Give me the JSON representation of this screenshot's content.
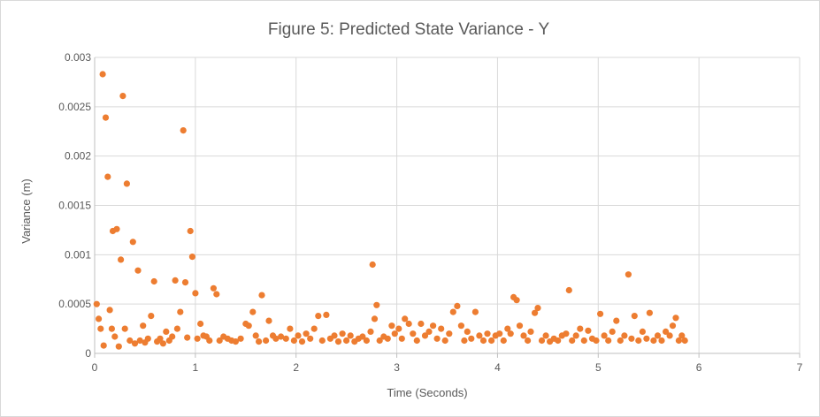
{
  "chart_data": {
    "type": "scatter",
    "title": "Figure 5: Predicted State Variance - Y",
    "xlabel": "Time (Seconds)",
    "ylabel": "Variance (m)",
    "xlim": [
      0,
      7
    ],
    "ylim": [
      0,
      0.003
    ],
    "x_ticks": [
      "0",
      "1",
      "2",
      "3",
      "4",
      "5",
      "6",
      "7"
    ],
    "y_ticks": [
      "0",
      "0.0005",
      "0.001",
      "0.0015",
      "0.002",
      "0.0025",
      "0.003"
    ],
    "grid": true,
    "legend": "none",
    "marker_color": "#ED7D31",
    "series": [
      {
        "points": [
          [
            0.02,
            0.0005
          ],
          [
            0.04,
            0.00035
          ],
          [
            0.06,
            0.00025
          ],
          [
            0.08,
            0.00283
          ],
          [
            0.09,
            8e-05
          ],
          [
            0.11,
            0.00239
          ],
          [
            0.13,
            0.00179
          ],
          [
            0.15,
            0.00044
          ],
          [
            0.17,
            0.00025
          ],
          [
            0.18,
            0.00124
          ],
          [
            0.2,
            0.00017
          ],
          [
            0.22,
            0.00126
          ],
          [
            0.24,
            7e-05
          ],
          [
            0.26,
            0.00095
          ],
          [
            0.28,
            0.00261
          ],
          [
            0.3,
            0.00025
          ],
          [
            0.32,
            0.00172
          ],
          [
            0.35,
            0.00013
          ],
          [
            0.38,
            0.00113
          ],
          [
            0.4,
            0.0001
          ],
          [
            0.43,
            0.00084
          ],
          [
            0.45,
            0.00013
          ],
          [
            0.48,
            0.00028
          ],
          [
            0.5,
            0.00011
          ],
          [
            0.53,
            0.00015
          ],
          [
            0.56,
            0.00038
          ],
          [
            0.59,
            0.00073
          ],
          [
            0.62,
            0.00012
          ],
          [
            0.65,
            0.00015
          ],
          [
            0.68,
            0.0001
          ],
          [
            0.71,
            0.00022
          ],
          [
            0.74,
            0.00013
          ],
          [
            0.77,
            0.00017
          ],
          [
            0.8,
            0.00074
          ],
          [
            0.82,
            0.00025
          ],
          [
            0.85,
            0.00042
          ],
          [
            0.88,
            0.00226
          ],
          [
            0.9,
            0.00072
          ],
          [
            0.92,
            0.00016
          ],
          [
            0.95,
            0.00124
          ],
          [
            0.97,
            0.00098
          ],
          [
            1.0,
            0.00061
          ],
          [
            1.02,
            0.00015
          ],
          [
            1.05,
            0.0003
          ],
          [
            1.08,
            0.00018
          ],
          [
            1.11,
            0.00017
          ],
          [
            1.14,
            0.00013
          ],
          [
            1.18,
            0.00066
          ],
          [
            1.21,
            0.0006
          ],
          [
            1.24,
            0.00013
          ],
          [
            1.28,
            0.00017
          ],
          [
            1.32,
            0.00015
          ],
          [
            1.36,
            0.00013
          ],
          [
            1.4,
            0.00012
          ],
          [
            1.45,
            0.00015
          ],
          [
            1.5,
            0.0003
          ],
          [
            1.53,
            0.00028
          ],
          [
            1.57,
            0.00042
          ],
          [
            1.6,
            0.00018
          ],
          [
            1.63,
            0.00012
          ],
          [
            1.66,
            0.00059
          ],
          [
            1.7,
            0.00013
          ],
          [
            1.73,
            0.00033
          ],
          [
            1.77,
            0.00018
          ],
          [
            1.8,
            0.00015
          ],
          [
            1.85,
            0.00017
          ],
          [
            1.9,
            0.00015
          ],
          [
            1.94,
            0.00025
          ],
          [
            1.98,
            0.00013
          ],
          [
            2.02,
            0.00018
          ],
          [
            2.06,
            0.00012
          ],
          [
            2.1,
            0.0002
          ],
          [
            2.14,
            0.00015
          ],
          [
            2.18,
            0.00025
          ],
          [
            2.22,
            0.00038
          ],
          [
            2.26,
            0.00013
          ],
          [
            2.3,
            0.00039
          ],
          [
            2.34,
            0.00015
          ],
          [
            2.38,
            0.00018
          ],
          [
            2.42,
            0.00012
          ],
          [
            2.46,
            0.0002
          ],
          [
            2.5,
            0.00013
          ],
          [
            2.54,
            0.00018
          ],
          [
            2.58,
            0.00012
          ],
          [
            2.62,
            0.00015
          ],
          [
            2.66,
            0.00017
          ],
          [
            2.7,
            0.00013
          ],
          [
            2.74,
            0.00022
          ],
          [
            2.76,
            0.0009
          ],
          [
            2.78,
            0.00035
          ],
          [
            2.8,
            0.00049
          ],
          [
            2.83,
            0.00013
          ],
          [
            2.87,
            0.00017
          ],
          [
            2.91,
            0.00015
          ],
          [
            2.95,
            0.00028
          ],
          [
            2.98,
            0.0002
          ],
          [
            3.02,
            0.00025
          ],
          [
            3.05,
            0.00015
          ],
          [
            3.08,
            0.00035
          ],
          [
            3.12,
            0.0003
          ],
          [
            3.16,
            0.0002
          ],
          [
            3.2,
            0.00013
          ],
          [
            3.24,
            0.0003
          ],
          [
            3.28,
            0.00018
          ],
          [
            3.32,
            0.00022
          ],
          [
            3.36,
            0.00028
          ],
          [
            3.4,
            0.00015
          ],
          [
            3.44,
            0.00025
          ],
          [
            3.48,
            0.00013
          ],
          [
            3.52,
            0.0002
          ],
          [
            3.56,
            0.00042
          ],
          [
            3.6,
            0.00048
          ],
          [
            3.64,
            0.00028
          ],
          [
            3.67,
            0.00013
          ],
          [
            3.7,
            0.00022
          ],
          [
            3.74,
            0.00015
          ],
          [
            3.78,
            0.00042
          ],
          [
            3.82,
            0.00018
          ],
          [
            3.86,
            0.00013
          ],
          [
            3.9,
            0.0002
          ],
          [
            3.94,
            0.00013
          ],
          [
            3.98,
            0.00018
          ],
          [
            4.02,
            0.0002
          ],
          [
            4.06,
            0.00013
          ],
          [
            4.1,
            0.00025
          ],
          [
            4.13,
            0.0002
          ],
          [
            4.16,
            0.00057
          ],
          [
            4.19,
            0.00054
          ],
          [
            4.22,
            0.00028
          ],
          [
            4.26,
            0.00018
          ],
          [
            4.3,
            0.00013
          ],
          [
            4.33,
            0.00022
          ],
          [
            4.37,
            0.00041
          ],
          [
            4.4,
            0.00046
          ],
          [
            4.44,
            0.00013
          ],
          [
            4.48,
            0.00018
          ],
          [
            4.52,
            0.00012
          ],
          [
            4.56,
            0.00015
          ],
          [
            4.6,
            0.00013
          ],
          [
            4.64,
            0.00018
          ],
          [
            4.68,
            0.0002
          ],
          [
            4.71,
            0.00064
          ],
          [
            4.74,
            0.00013
          ],
          [
            4.78,
            0.00018
          ],
          [
            4.82,
            0.00025
          ],
          [
            4.86,
            0.00013
          ],
          [
            4.9,
            0.00023
          ],
          [
            4.94,
            0.00015
          ],
          [
            4.98,
            0.00013
          ],
          [
            5.02,
            0.0004
          ],
          [
            5.06,
            0.00018
          ],
          [
            5.1,
            0.00013
          ],
          [
            5.14,
            0.00022
          ],
          [
            5.18,
            0.00033
          ],
          [
            5.22,
            0.00013
          ],
          [
            5.26,
            0.00018
          ],
          [
            5.3,
            0.0008
          ],
          [
            5.33,
            0.00015
          ],
          [
            5.36,
            0.00038
          ],
          [
            5.4,
            0.00013
          ],
          [
            5.44,
            0.00022
          ],
          [
            5.48,
            0.00015
          ],
          [
            5.51,
            0.00041
          ],
          [
            5.55,
            0.00013
          ],
          [
            5.59,
            0.00018
          ],
          [
            5.63,
            0.00013
          ],
          [
            5.67,
            0.00022
          ],
          [
            5.71,
            0.00018
          ],
          [
            5.74,
            0.00028
          ],
          [
            5.77,
            0.00036
          ],
          [
            5.8,
            0.00013
          ],
          [
            5.83,
            0.00018
          ],
          [
            5.86,
            0.00013
          ]
        ]
      }
    ]
  }
}
